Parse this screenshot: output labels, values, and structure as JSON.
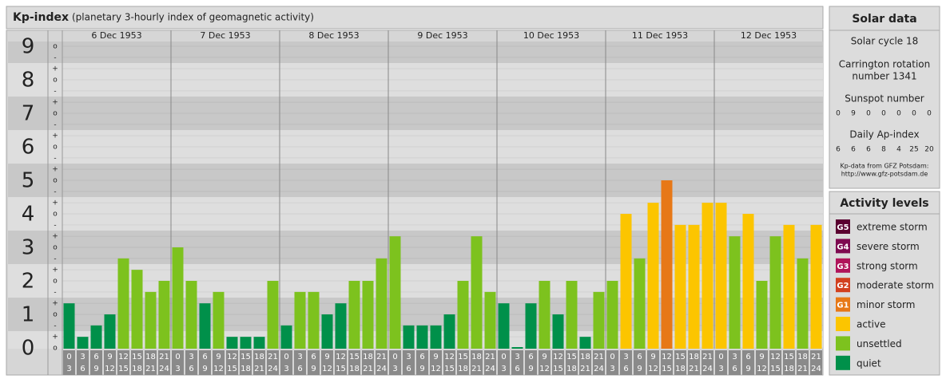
{
  "chart_data": {
    "type": "bar",
    "title": "Kp-index",
    "subtitle": "(planetary 3-hourly index of geomagnetic activity)",
    "ylim": [
      0,
      9
    ],
    "yticks": [
      0,
      1,
      2,
      3,
      4,
      5,
      6,
      7,
      8,
      9
    ],
    "minor_ticks": [
      {
        "value": 0,
        "label": "o"
      },
      {
        "value": 0.33,
        "label": "+"
      },
      {
        "value": 0.67,
        "label": "-"
      },
      {
        "value": 1,
        "label": "o"
      },
      {
        "value": 1.33,
        "label": "+"
      },
      {
        "value": 1.67,
        "label": "-"
      },
      {
        "value": 2,
        "label": "o"
      },
      {
        "value": 2.33,
        "label": "+"
      },
      {
        "value": 2.67,
        "label": "-"
      },
      {
        "value": 3,
        "label": "o"
      },
      {
        "value": 3.33,
        "label": "+"
      },
      {
        "value": 3.67,
        "label": "-"
      },
      {
        "value": 4,
        "label": "o"
      },
      {
        "value": 4.33,
        "label": "+"
      },
      {
        "value": 4.67,
        "label": "-"
      },
      {
        "value": 5,
        "label": "o"
      },
      {
        "value": 5.33,
        "label": "+"
      },
      {
        "value": 5.67,
        "label": "-"
      },
      {
        "value": 6,
        "label": "o"
      },
      {
        "value": 6.33,
        "label": "+"
      },
      {
        "value": 6.67,
        "label": "-"
      },
      {
        "value": 7,
        "label": "o"
      },
      {
        "value": 7.33,
        "label": "+"
      },
      {
        "value": 7.67,
        "label": "-"
      },
      {
        "value": 8,
        "label": "o"
      },
      {
        "value": 8.33,
        "label": "+"
      },
      {
        "value": 8.67,
        "label": "-"
      },
      {
        "value": 9,
        "label": "o"
      }
    ],
    "categories": [
      [
        "0",
        "3"
      ],
      [
        "3",
        "6"
      ],
      [
        "6",
        "9"
      ],
      [
        "9",
        "12"
      ],
      [
        "12",
        "15"
      ],
      [
        "15",
        "18"
      ],
      [
        "18",
        "21"
      ],
      [
        "21",
        "24"
      ]
    ],
    "series": [
      {
        "name": "6 Dec 1953",
        "values": [
          1.33,
          0.33,
          0.67,
          1,
          2.67,
          2.33,
          1.67,
          2
        ],
        "colors": [
          "#00904a",
          "#00904a",
          "#00904a",
          "#00904a",
          "#7dc21e",
          "#7dc21e",
          "#7dc21e",
          "#7dc21e"
        ]
      },
      {
        "name": "7 Dec 1953",
        "values": [
          3,
          2,
          1.33,
          1.67,
          0.33,
          0.33,
          0.33,
          2
        ],
        "colors": [
          "#7dc21e",
          "#7dc21e",
          "#00904a",
          "#7dc21e",
          "#00904a",
          "#00904a",
          "#00904a",
          "#7dc21e"
        ]
      },
      {
        "name": "8 Dec 1953",
        "values": [
          0.67,
          1.67,
          1.67,
          1,
          1.33,
          2,
          2,
          2.67
        ],
        "colors": [
          "#00904a",
          "#7dc21e",
          "#7dc21e",
          "#00904a",
          "#00904a",
          "#7dc21e",
          "#7dc21e",
          "#7dc21e"
        ]
      },
      {
        "name": "9 Dec 1953",
        "values": [
          3.33,
          0.67,
          0.67,
          0.67,
          1,
          2,
          3.33,
          1.67
        ],
        "colors": [
          "#7dc21e",
          "#00904a",
          "#00904a",
          "#00904a",
          "#00904a",
          "#7dc21e",
          "#7dc21e",
          "#7dc21e"
        ]
      },
      {
        "name": "10 Dec 1953",
        "values": [
          1.33,
          0,
          1.33,
          2,
          1,
          2,
          0.33,
          1.67
        ],
        "colors": [
          "#00904a",
          "#00904a",
          "#00904a",
          "#7dc21e",
          "#00904a",
          "#7dc21e",
          "#00904a",
          "#7dc21e"
        ]
      },
      {
        "name": "11 Dec 1953",
        "values": [
          2,
          4,
          2.67,
          4.33,
          5,
          3.67,
          3.67,
          4.33
        ],
        "colors": [
          "#7dc21e",
          "#fcc500",
          "#7dc21e",
          "#fcc500",
          "#e77817",
          "#fcc500",
          "#fcc500",
          "#fcc500"
        ]
      },
      {
        "name": "12 Dec 1953",
        "values": [
          4.33,
          3.33,
          4,
          2,
          3.33,
          3.67,
          2.67,
          3.67
        ],
        "colors": [
          "#fcc500",
          "#7dc21e",
          "#fcc500",
          "#7dc21e",
          "#7dc21e",
          "#fcc500",
          "#7dc21e",
          "#fcc500"
        ]
      }
    ],
    "legend_title": "Activity levels",
    "legend": [
      {
        "code": "G5",
        "name": "extreme storm",
        "color": "#5a0030"
      },
      {
        "code": "G4",
        "name": "severe storm",
        "color": "#7e0a50"
      },
      {
        "code": "G3",
        "name": "strong storm",
        "color": "#b0145a"
      },
      {
        "code": "G2",
        "name": "moderate storm",
        "color": "#d2401e"
      },
      {
        "code": "G1",
        "name": "minor storm",
        "color": "#e77817"
      },
      {
        "name": "active",
        "color": "#fcc500"
      },
      {
        "name": "unsettled",
        "color": "#7dc21e"
      },
      {
        "name": "quiet",
        "color": "#00904a"
      }
    ]
  },
  "solar_data": {
    "title": "Solar data",
    "solar_cycle": "Solar cycle 18",
    "carrington": [
      "Carrington rotation",
      "number 1341"
    ],
    "sunspot_title": "Sunspot number",
    "sunspot_numbers": [
      0,
      9,
      0,
      0,
      0,
      0,
      0
    ],
    "ap_title": "Daily Ap-index",
    "ap_values": [
      6,
      6,
      6,
      8,
      4,
      25,
      20
    ],
    "source": [
      "Kp-data from GFZ Potsdam:",
      "http://www.gfz-potsdam.de"
    ]
  }
}
